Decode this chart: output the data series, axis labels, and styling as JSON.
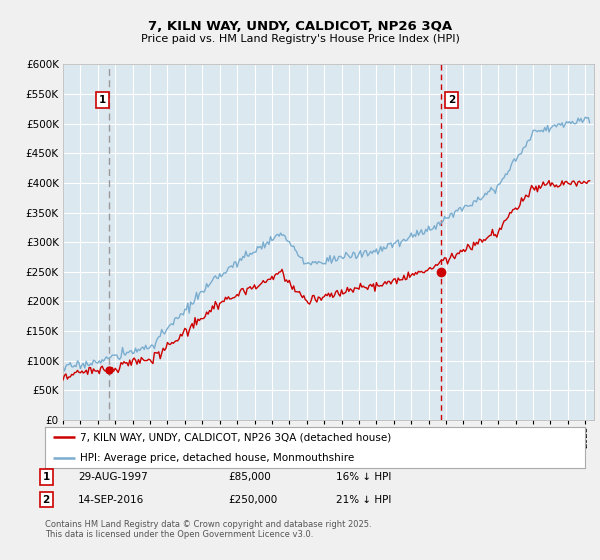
{
  "title": "7, KILN WAY, UNDY, CALDICOT, NP26 3QA",
  "subtitle": "Price paid vs. HM Land Registry's House Price Index (HPI)",
  "ylim": [
    0,
    600000
  ],
  "yticks": [
    0,
    50000,
    100000,
    150000,
    200000,
    250000,
    300000,
    350000,
    400000,
    450000,
    500000,
    550000,
    600000
  ],
  "xlim_start": 1995.0,
  "xlim_end": 2025.5,
  "xticks": [
    1995,
    1996,
    1997,
    1998,
    1999,
    2000,
    2001,
    2002,
    2003,
    2004,
    2005,
    2006,
    2007,
    2008,
    2009,
    2010,
    2011,
    2012,
    2013,
    2014,
    2015,
    2016,
    2017,
    2018,
    2019,
    2020,
    2021,
    2022,
    2023,
    2024,
    2025
  ],
  "sale1_year": 1997.66,
  "sale1_price": 85000,
  "sale1_label": "1",
  "sale1_text": "29-AUG-1997",
  "sale1_pct": "16% ↓ HPI",
  "sale2_year": 2016.71,
  "sale2_price": 250000,
  "sale2_label": "2",
  "sale2_text": "14-SEP-2016",
  "sale2_pct": "21% ↓ HPI",
  "legend_line1": "7, KILN WAY, UNDY, CALDICOT, NP26 3QA (detached house)",
  "legend_line2": "HPI: Average price, detached house, Monmouthshire",
  "footer": "Contains HM Land Registry data © Crown copyright and database right 2025.\nThis data is licensed under the Open Government Licence v3.0.",
  "line_color_red": "#cc0000",
  "line_color_blue": "#7aadcf",
  "vline1_color": "#999999",
  "vline2_color": "#cc0000",
  "bg_color": "#f0f0f0",
  "plot_bg": "#dce8f0",
  "grid_color": "#ffffff",
  "label_box_color": "#cc0000"
}
